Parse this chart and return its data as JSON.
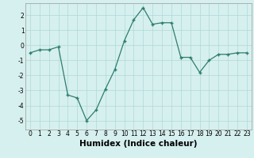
{
  "x": [
    0,
    1,
    2,
    3,
    4,
    5,
    6,
    7,
    8,
    9,
    10,
    11,
    12,
    13,
    14,
    15,
    16,
    17,
    18,
    19,
    20,
    21,
    22,
    23
  ],
  "y": [
    -0.5,
    -0.3,
    -0.3,
    -0.1,
    -3.3,
    -3.5,
    -5.0,
    -4.3,
    -2.9,
    -1.6,
    0.3,
    1.7,
    2.5,
    1.4,
    1.5,
    1.5,
    -0.8,
    -0.8,
    -1.8,
    -1.0,
    -0.6,
    -0.6,
    -0.5,
    -0.5
  ],
  "xlabel": "Humidex (Indice chaleur)",
  "xlim": [
    -0.5,
    23.5
  ],
  "ylim": [
    -5.6,
    2.8
  ],
  "yticks": [
    -5,
    -4,
    -3,
    -2,
    -1,
    0,
    1,
    2
  ],
  "xticks": [
    0,
    1,
    2,
    3,
    4,
    5,
    6,
    7,
    8,
    9,
    10,
    11,
    12,
    13,
    14,
    15,
    16,
    17,
    18,
    19,
    20,
    21,
    22,
    23
  ],
  "line_color": "#2e7d6e",
  "marker": "+",
  "bg_color": "#d6f0ef",
  "grid_color": "#aed8d4",
  "tick_label_size": 5.5,
  "xlabel_size": 7.5
}
